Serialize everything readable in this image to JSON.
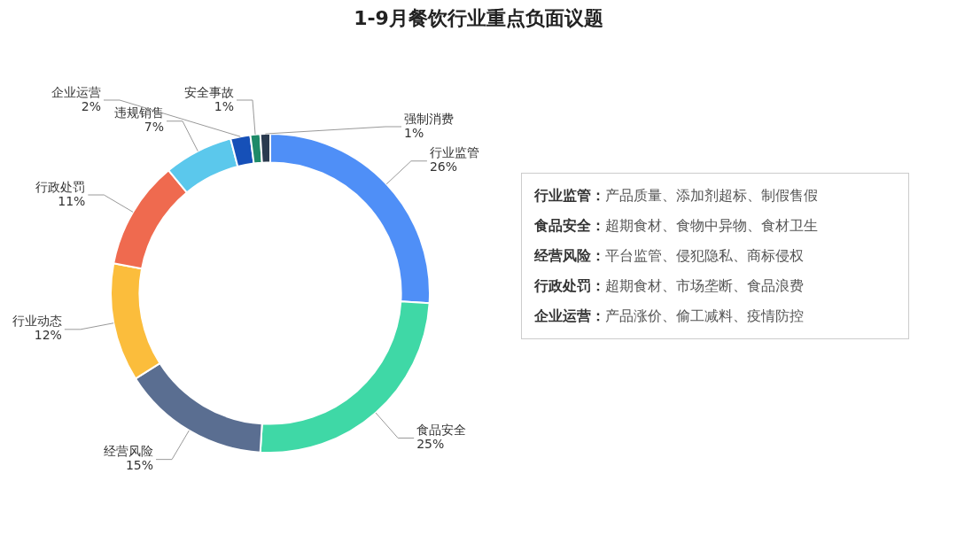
{
  "chart_data": {
    "type": "donut",
    "title": "1-9月餐饮行业重点负面议题",
    "categories": [
      "行业监管",
      "食品安全",
      "经营风险",
      "行业动态",
      "行政处罚",
      "违规销售",
      "企业运营",
      "安全事故",
      "强制消费"
    ],
    "values": [
      26,
      25,
      15,
      12,
      11,
      7,
      2,
      1,
      1
    ],
    "value_labels": [
      "26%",
      "25%",
      "15%",
      "12%",
      "11%",
      "7%",
      "2%",
      "1%",
      "1%"
    ],
    "colors": [
      "#4f8ff7",
      "#3fd8a6",
      "#5a6e91",
      "#fbbd3c",
      "#ef6a4f",
      "#5bc8ec",
      "#1650b8",
      "#1e8a68",
      "#2a3a4f"
    ],
    "legend": false,
    "annotations": [
      "行业监管：产品质量、添加剂超标、制假售假",
      "食品安全：超期食材、食物中异物、食材卫生",
      "经营风险：平台监管、侵犯隐私、商标侵权",
      "行政处罚：超期食材、市场垄断、食品浪费",
      "企业运营：产品涨价、偷工减料、疫情防控"
    ]
  }
}
